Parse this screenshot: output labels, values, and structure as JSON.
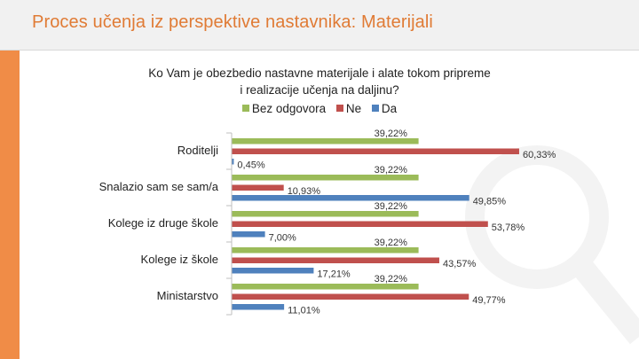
{
  "header": {
    "title": "Proces učenja iz perspektive nastavnika: Materijali"
  },
  "colors": {
    "accent": "#f08c47",
    "title": "#e07b35",
    "bez_odgovora": "#9bbb59",
    "ne": "#c0504d",
    "da": "#4f81bd"
  },
  "chart_data": {
    "type": "bar",
    "orientation": "horizontal",
    "title": "Ko Vam je obezbedio nastavne materijale i alate tokom pripreme i realizacije učenja na daljinu?",
    "title_lines": [
      "Ko Vam je obezbedio nastavne materijale i alate tokom pripreme",
      "i realizacije učenja na daljinu?"
    ],
    "categories": [
      "Roditelji",
      "Snalazio sam se sam/a",
      "Kolege iz druge škole",
      "Kolege iz škole",
      "Ministarstvo"
    ],
    "series": [
      {
        "name": "Bez odgovora",
        "color": "#9bbb59",
        "values": [
          39.22,
          39.22,
          39.22,
          39.22,
          39.22
        ],
        "labels": [
          "39,22%",
          "39,22%",
          "39,22%",
          "39,22%",
          "39,22%"
        ]
      },
      {
        "name": "Ne",
        "color": "#c0504d",
        "values": [
          60.33,
          10.93,
          53.78,
          43.57,
          49.77
        ],
        "labels": [
          "60,33%",
          "10,93%",
          "53,78%",
          "43,57%",
          "49,77%"
        ]
      },
      {
        "name": "Da",
        "color": "#4f81bd",
        "values": [
          0.45,
          49.85,
          7.0,
          17.21,
          11.01
        ],
        "labels": [
          "0,45%",
          "49,85%",
          "7,00%",
          "17,21%",
          "11,01%"
        ]
      }
    ],
    "legend": "top",
    "grid": false,
    "xlim": [
      0,
      70
    ]
  }
}
